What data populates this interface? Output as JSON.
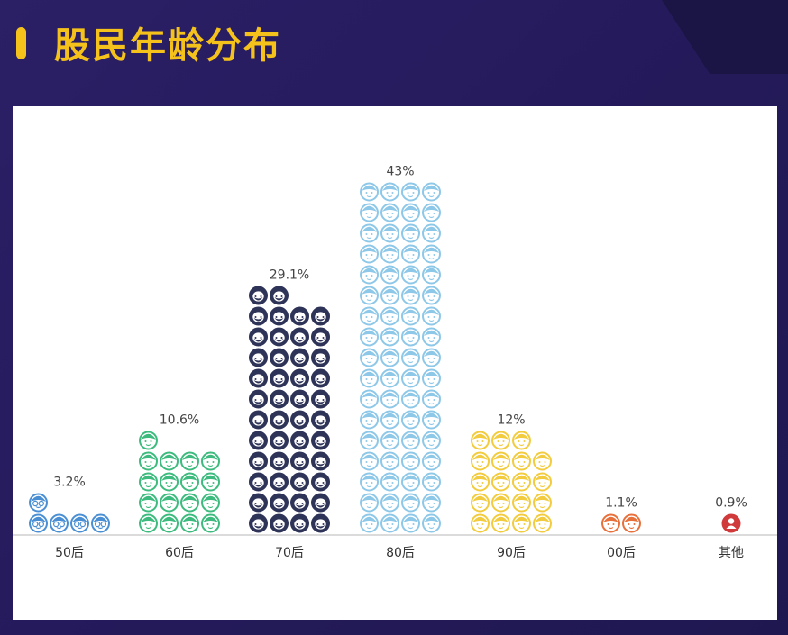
{
  "title": "股民年龄分布",
  "chart_data": {
    "type": "bar",
    "categories": [
      "50后",
      "60后",
      "70后",
      "80后",
      "90后",
      "00后",
      "其他"
    ],
    "values": [
      3.2,
      10.6,
      29.1,
      43,
      12,
      1.1,
      0.9
    ],
    "data_labels": [
      "3.2%",
      "10.6%",
      "29.1%",
      "43%",
      "12%",
      "1.1%",
      "0.9%"
    ],
    "icon_counts": [
      5,
      17,
      46,
      68,
      19,
      2,
      1
    ],
    "icons": [
      "grandpa-glasses-icon",
      "elder-cap-icon",
      "bearded-man-icon",
      "young-man-icon",
      "boy-icon",
      "child-icon",
      "person-icon"
    ],
    "colors": [
      "#4a8fd4",
      "#3dbb7e",
      "#2e3358",
      "#8ec8e8",
      "#f2cc3e",
      "#e8703a",
      "#d13a3a"
    ],
    "title": "",
    "xlabel": "",
    "ylabel": ""
  }
}
